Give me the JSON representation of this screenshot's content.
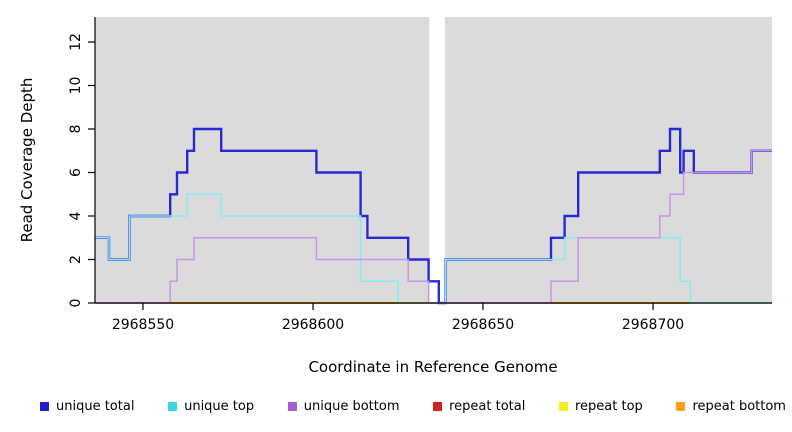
{
  "axes": {
    "x_label": "Coordinate in Reference Genome",
    "y_label": "Read Coverage Depth",
    "x_ticks": [
      2968550,
      2968600,
      2968650,
      2968700
    ],
    "y_ticks": [
      0,
      2,
      4,
      6,
      8,
      10,
      12
    ]
  },
  "legend": {
    "items": [
      {
        "label": "unique total",
        "color": "#1F1FCE"
      },
      {
        "label": "unique top",
        "color": "#3ED6DE"
      },
      {
        "label": "unique bottom",
        "color": "#A55FD5"
      },
      {
        "label": "repeat total",
        "color": "#CC2222"
      },
      {
        "label": "repeat top",
        "color": "#EFEF1C"
      },
      {
        "label": "repeat bottom",
        "color": "#FF9E1B"
      }
    ]
  },
  "chart_data": {
    "type": "step-line",
    "title": "",
    "xlabel": "Coordinate in Reference Genome",
    "ylabel": "Read Coverage Depth",
    "x_range": [
      2968536,
      2968735
    ],
    "y_range": [
      0,
      13.1
    ],
    "grid": false,
    "panel_background": "#DBDBDB",
    "gap_region": {
      "from": 2968634.2,
      "to": 2968638.8
    },
    "series": [
      {
        "name": "unique total",
        "color": "#2828D7",
        "width": 2.4,
        "points": [
          [
            2968536,
            3
          ],
          [
            2968540,
            2
          ],
          [
            2968546,
            4
          ],
          [
            2968558,
            5
          ],
          [
            2968560,
            6
          ],
          [
            2968563,
            7
          ],
          [
            2968565,
            8
          ],
          [
            2968573,
            7
          ],
          [
            2968601,
            6
          ],
          [
            2968614,
            4
          ],
          [
            2968616,
            3
          ],
          [
            2968628,
            2
          ],
          [
            2968634,
            1
          ],
          [
            2968637,
            0
          ],
          [
            2968639,
            2
          ],
          [
            2968670,
            3
          ],
          [
            2968674,
            4
          ],
          [
            2968678,
            6
          ],
          [
            2968702,
            7
          ],
          [
            2968705,
            8
          ],
          [
            2968708,
            6
          ],
          [
            2968709,
            7
          ],
          [
            2968712,
            6
          ],
          [
            2968729,
            7
          ]
        ],
        "end": 2968735
      },
      {
        "name": "unique top",
        "color": "#85EDF2",
        "width": 1.5,
        "points": [
          [
            2968536,
            3
          ],
          [
            2968540,
            2
          ],
          [
            2968546,
            4
          ],
          [
            2968563,
            5
          ],
          [
            2968573,
            4
          ],
          [
            2968614,
            1
          ],
          [
            2968625,
            0
          ],
          [
            2968639,
            2
          ],
          [
            2968674,
            3
          ],
          [
            2968708,
            1
          ],
          [
            2968711,
            0
          ]
        ],
        "end": 2968735
      },
      {
        "name": "unique bottom",
        "color": "#C795E8",
        "width": 1.5,
        "points": [
          [
            2968536,
            0
          ],
          [
            2968558,
            1
          ],
          [
            2968560,
            2
          ],
          [
            2968565,
            3
          ],
          [
            2968601,
            2
          ],
          [
            2968628,
            1
          ],
          [
            2968634,
            0
          ],
          [
            2968670,
            1
          ],
          [
            2968678,
            3
          ],
          [
            2968702,
            4
          ],
          [
            2968705,
            5
          ],
          [
            2968709,
            6
          ],
          [
            2968729,
            7
          ]
        ],
        "end": 2968735
      },
      {
        "name": "repeat total",
        "color": "#CC2222",
        "width": 1.5,
        "points": [],
        "end": 2968735
      },
      {
        "name": "repeat top",
        "color": "#EFEF1C",
        "width": 1.5,
        "points": [],
        "end": 2968735
      },
      {
        "name": "repeat bottom",
        "color": "#FFA41A",
        "width": 2,
        "points": [],
        "end": 2968735
      }
    ],
    "baseline_segments": [
      {
        "name": "baseline-pink-left",
        "color": "#D95F90",
        "width": 1.5,
        "from": 2968536,
        "to": 2968558
      },
      {
        "name": "baseline-orange-left",
        "color": "#FFA41A",
        "width": 2.0,
        "from": 2968558,
        "to": 2968634
      },
      {
        "name": "baseline-pink-mid",
        "color": "#D95F90",
        "width": 1.5,
        "from": 2968634,
        "to": 2968670
      },
      {
        "name": "baseline-orange-right",
        "color": "#FFA41A",
        "width": 2.0,
        "from": 2968670,
        "to": 2968711
      },
      {
        "name": "baseline-green-right",
        "color": "#93D8A9",
        "width": 1.5,
        "from": 2968711,
        "to": 2968735
      }
    ]
  }
}
